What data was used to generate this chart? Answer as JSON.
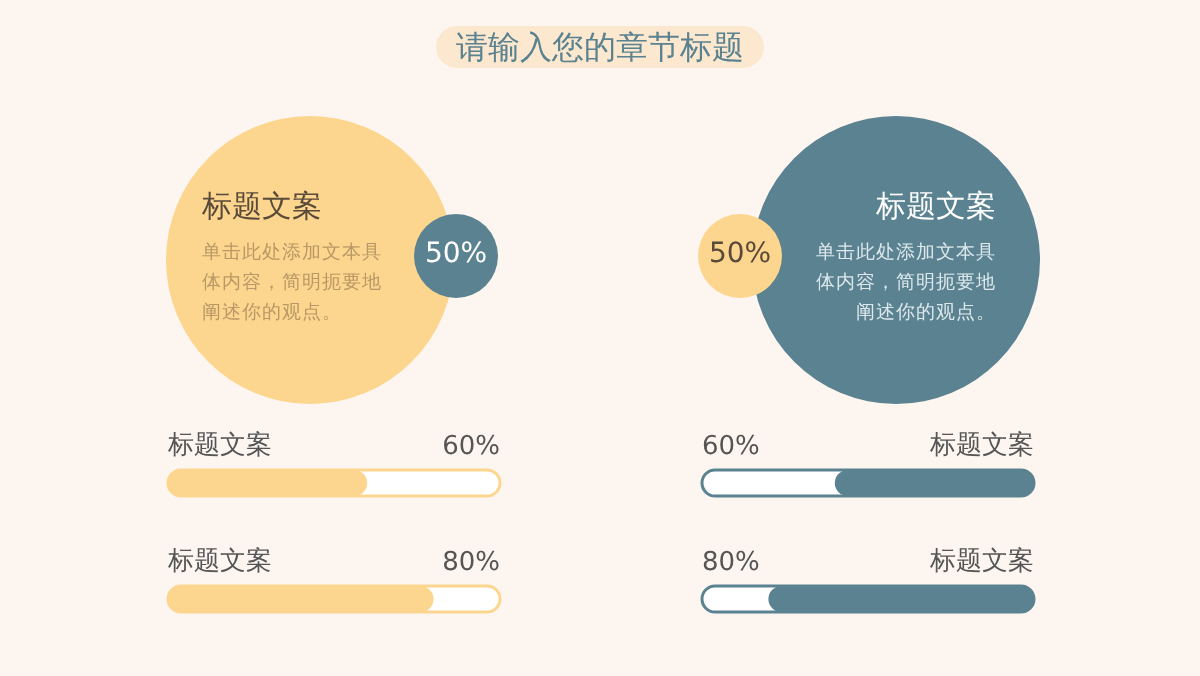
{
  "chart_data": [
    {
      "type": "other",
      "title": "请输入您的章节标题",
      "annotations": [
        "标题文案",
        "单击此处添加文本具体内容，简明扼要地阐述你的观点。",
        "50%"
      ],
      "colors": [
        "#fcd68e",
        "#5b8290"
      ]
    },
    {
      "type": "other",
      "annotations": [
        "标题文案",
        "单击此处添加文本具体内容，简明扼要地阐述你的观点。",
        "50%"
      ],
      "colors": [
        "#5b8290",
        "#fcd68e"
      ]
    },
    {
      "type": "bar",
      "orientation": "horizontal",
      "categories": [
        "标题文案",
        "标题文案"
      ],
      "values": [
        60,
        80
      ],
      "value_labels": [
        "60%",
        "80%"
      ],
      "color": "#fcd68e",
      "xlim": [
        0,
        100
      ],
      "tick_labels": "y"
    },
    {
      "type": "bar",
      "orientation": "horizontal",
      "categories": [
        "标题文案",
        "标题文案"
      ],
      "values": [
        60,
        80
      ],
      "value_labels": [
        "60%",
        "80%"
      ],
      "color": "#5b8290",
      "xlim": [
        100,
        0
      ],
      "tick_labels": "y"
    }
  ]
}
